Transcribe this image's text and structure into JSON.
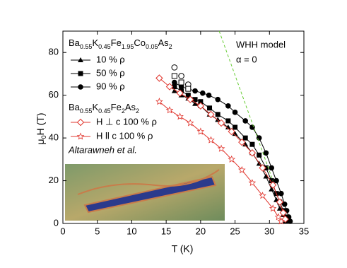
{
  "chart_data": {
    "type": "line",
    "xlabel": "T (K)",
    "ylabel": "μ0H (T)",
    "xlim": [
      0,
      35
    ],
    "ylim": [
      0,
      90
    ],
    "xticks": [
      0,
      5,
      10,
      15,
      20,
      25,
      30,
      35
    ],
    "yticks": [
      0,
      20,
      40,
      60,
      80
    ],
    "legend_groups": [
      "Ba0.55K0.45Fe1.95Co0.05As2",
      "Ba0.55K0.45Fe2As2"
    ],
    "annotations": [
      "WHH model",
      "α = 0",
      "Altarawneh et al."
    ],
    "series": [
      {
        "name": "10 % ρ",
        "color": "#000000",
        "marker": "triangle",
        "x": [
          16.2,
          17.2,
          18.2,
          19.2,
          20,
          21.3,
          22.5,
          24,
          25,
          26.5,
          27.5,
          28.5,
          29.5,
          30.3,
          31,
          31.5,
          32,
          32.3
        ],
        "values": [
          62,
          60,
          58.5,
          56,
          55,
          51,
          48.5,
          45,
          42,
          37,
          33,
          28,
          22,
          16,
          11,
          7,
          4,
          1
        ]
      },
      {
        "name": "50 % ρ",
        "color": "#000000",
        "marker": "square",
        "x": [
          16.2,
          17.2,
          18.2,
          19.2,
          20,
          21.3,
          22.5,
          24,
          25,
          26.5,
          27.5,
          28.5,
          29.5,
          30.3,
          31,
          31.5,
          32,
          32.5,
          32.8
        ],
        "values": [
          64,
          62,
          60,
          58,
          57,
          54,
          51,
          48,
          45,
          40,
          37,
          32,
          26,
          20,
          14,
          10,
          6,
          3,
          1
        ]
      },
      {
        "name": "90 % ρ",
        "color": "#000000",
        "marker": "circle",
        "x": [
          16.2,
          17.2,
          18.2,
          19.2,
          20.3,
          21.2,
          22.5,
          24,
          25,
          26.5,
          27.5,
          28.5,
          29.5,
          30.3,
          31,
          31.7,
          32.2,
          32.5,
          32.8,
          33
        ],
        "values": [
          66,
          64,
          63,
          62,
          61,
          60,
          58,
          55,
          52,
          48,
          45,
          40,
          33,
          26,
          20,
          14,
          9,
          6,
          3,
          1
        ]
      },
      {
        "name": "H ⊥ c  100 % ρ",
        "color": "#e0342c",
        "marker": "diamond",
        "x": [
          14,
          15.5,
          17,
          18.5,
          20,
          21.5,
          23,
          24.5,
          26,
          27.5,
          29,
          30.5,
          31.5,
          32,
          32.3
        ],
        "values": [
          68,
          64,
          61,
          58,
          55,
          51,
          47,
          43,
          38,
          33,
          26,
          18,
          10,
          5,
          2
        ]
      },
      {
        "name": "H ll c  100 % ρ",
        "color": "#e0342c",
        "marker": "star",
        "x": [
          14,
          15.5,
          17,
          18.5,
          20,
          21.5,
          23,
          24.5,
          26,
          27.5,
          29,
          30.5,
          31.3,
          31.7
        ],
        "values": [
          57,
          53,
          50,
          47,
          43,
          39,
          35,
          30,
          25,
          19,
          13,
          7,
          3,
          1
        ]
      },
      {
        "color": "#000000",
        "marker": "open-circle",
        "x": [
          16.2,
          17.2,
          18.2
        ],
        "values": [
          73,
          69,
          65
        ]
      },
      {
        "color": "#000000",
        "marker": "open-square",
        "x": [
          16.2,
          17.2,
          18.2
        ],
        "values": [
          69,
          66,
          63
        ]
      },
      {
        "color": "#66cc33",
        "marker": "dashed",
        "x": [
          22.7,
          30.5
        ],
        "values": [
          90,
          20
        ]
      }
    ]
  }
}
